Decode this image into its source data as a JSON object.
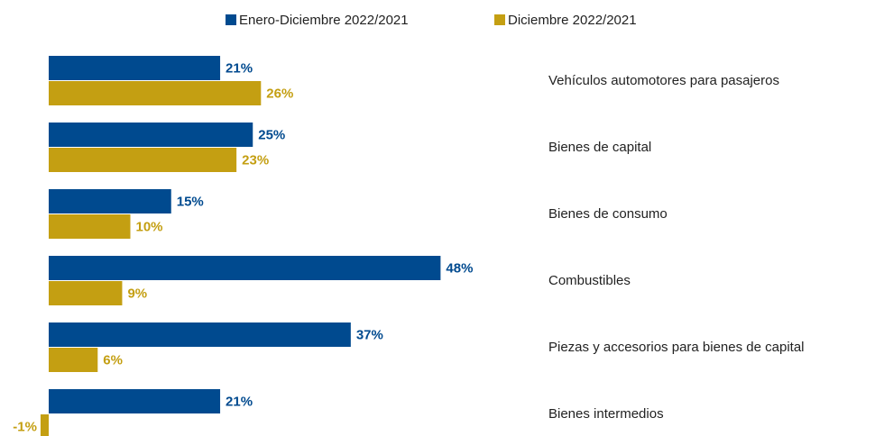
{
  "chart_data": {
    "type": "bar",
    "orientation": "horizontal",
    "categories": [
      "Vehículos automotores para pasajeros",
      "Bienes de capital",
      "Bienes de consumo",
      "Combustibles",
      "Piezas y accesorios para bienes de capital",
      "Bienes intermedios"
    ],
    "series": [
      {
        "name": "Enero-Diciembre 2022/2021",
        "color": "#004a8f",
        "values": [
          21,
          25,
          15,
          48,
          37,
          21
        ],
        "value_labels": [
          "21%",
          "25%",
          "15%",
          "48%",
          "37%",
          "21%"
        ]
      },
      {
        "name": "Diciembre 2022/2021",
        "color": "#c49f12",
        "values": [
          26,
          23,
          10,
          9,
          6,
          -1
        ],
        "value_labels": [
          "26%",
          "23%",
          "10%",
          "9%",
          "6%",
          "-1%"
        ]
      }
    ],
    "legend": "top"
  }
}
